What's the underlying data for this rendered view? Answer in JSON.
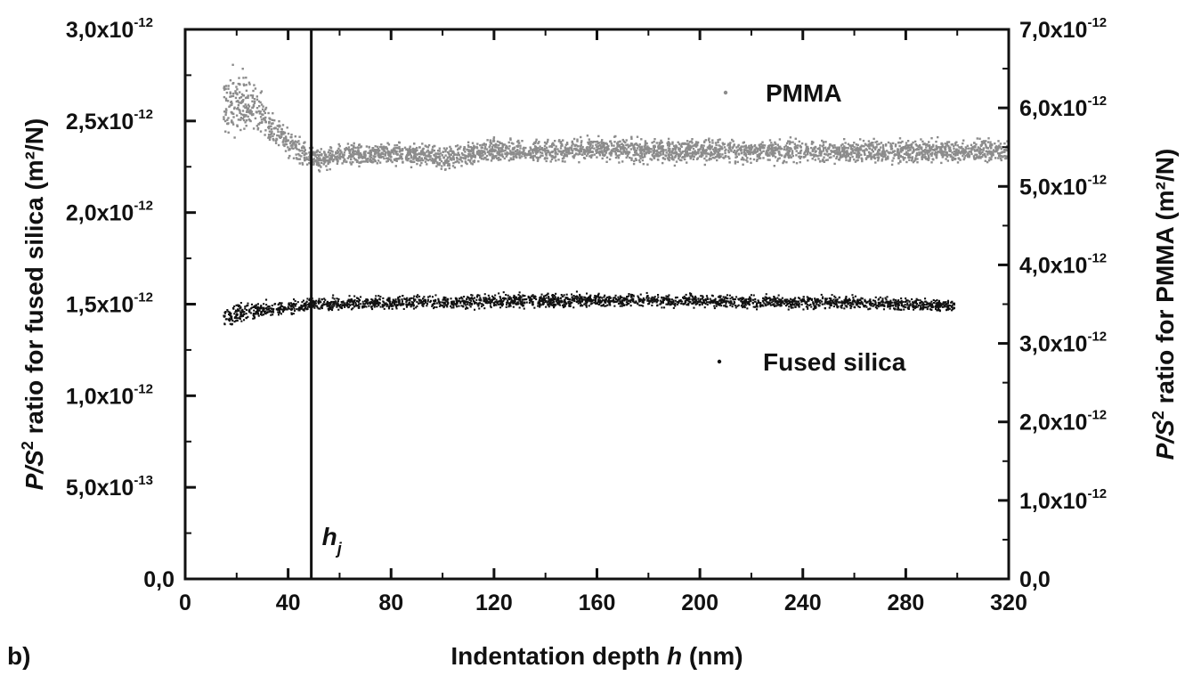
{
  "chart_data": {
    "type": "scatter",
    "panel_label": "b)",
    "xlabel": {
      "pre": "Indentation depth ",
      "var": "h",
      "post": " (nm)"
    },
    "ylabel_left": {
      "var": "P/S",
      "sup": "2",
      "post": " ratio for fused silica (m²/N)"
    },
    "ylabel_right": {
      "var": "P/S",
      "sup": "2",
      "post": " ratio for PMMA (m²/N)"
    },
    "xlim": [
      0,
      320
    ],
    "ylim_left": [
      0,
      3e-12
    ],
    "ylim_right": [
      0,
      7e-12
    ],
    "x_ticks": [
      "0",
      "40",
      "80",
      "120",
      "160",
      "200",
      "240",
      "280",
      "320"
    ],
    "y_left_ticks": [
      {
        "mant": "0,0",
        "exp": ""
      },
      {
        "mant": "5,0x10",
        "exp": "-13"
      },
      {
        "mant": "1,0x10",
        "exp": "-12"
      },
      {
        "mant": "1,5x10",
        "exp": "-12"
      },
      {
        "mant": "2,0x10",
        "exp": "-12"
      },
      {
        "mant": "2,5x10",
        "exp": "-12"
      },
      {
        "mant": "3,0x10",
        "exp": "-12"
      }
    ],
    "y_right_ticks": [
      {
        "mant": "0,0",
        "exp": ""
      },
      {
        "mant": "1,0x10",
        "exp": "-12"
      },
      {
        "mant": "2,0x10",
        "exp": "-12"
      },
      {
        "mant": "3,0x10",
        "exp": "-12"
      },
      {
        "mant": "4,0x10",
        "exp": "-12"
      },
      {
        "mant": "5,0x10",
        "exp": "-12"
      },
      {
        "mant": "6,0x10",
        "exp": "-12"
      },
      {
        "mant": "7,0x10",
        "exp": "-12"
      }
    ],
    "vline": {
      "x": 49,
      "label": "h",
      "sub": "j"
    },
    "series": [
      {
        "name": "PMMA",
        "axis": "right",
        "color": "#8c8c8c",
        "x": [
          15,
          20,
          25,
          30,
          35,
          40,
          45,
          50,
          55,
          60,
          70,
          80,
          90,
          100,
          110,
          120,
          140,
          160,
          180,
          200,
          220,
          240,
          260,
          280,
          300,
          320
        ],
        "y": [
          6e-12,
          6.1e-12,
          6.05e-12,
          5.85e-12,
          5.7e-12,
          5.55e-12,
          5.45e-12,
          5.35e-12,
          5.35e-12,
          5.4e-12,
          5.4e-12,
          5.42e-12,
          5.4e-12,
          5.35e-12,
          5.42e-12,
          5.45e-12,
          5.45e-12,
          5.48e-12,
          5.45e-12,
          5.45e-12,
          5.45e-12,
          5.45e-12,
          5.45e-12,
          5.45e-12,
          5.45e-12,
          5.45e-12
        ],
        "spread": [
          5.5e-13,
          5.5e-13,
          5e-13,
          4e-13,
          3e-13,
          2.5e-13,
          2.2e-13,
          2e-13,
          2e-13,
          2e-13,
          2e-13,
          2e-13,
          2e-13,
          2e-13,
          2e-13,
          2e-13,
          2e-13,
          2e-13,
          2e-13,
          2e-13,
          2e-13,
          2e-13,
          2e-13,
          2e-13,
          2e-13,
          2e-13
        ]
      },
      {
        "name": "Fused silica",
        "axis": "left",
        "color": "#111111",
        "x": [
          15,
          20,
          25,
          30,
          40,
          50,
          60,
          80,
          100,
          120,
          140,
          160,
          180,
          200,
          220,
          240,
          260,
          280,
          299
        ],
        "y": [
          1.43e-12,
          1.45e-12,
          1.46e-12,
          1.47e-12,
          1.48e-12,
          1.5e-12,
          1.5e-12,
          1.51e-12,
          1.51e-12,
          1.52e-12,
          1.52e-12,
          1.52e-12,
          1.52e-12,
          1.52e-12,
          1.51e-12,
          1.51e-12,
          1.51e-12,
          1.5e-12,
          1.49e-12
        ],
        "spread": [
          6e-14,
          8e-14,
          8e-14,
          6e-14,
          5e-14,
          5e-14,
          5e-14,
          5e-14,
          5e-14,
          5e-14,
          5e-14,
          5e-14,
          5e-14,
          5e-14,
          5e-14,
          5e-14,
          5e-14,
          5e-14,
          4e-14
        ]
      }
    ],
    "legend_placement": "inside, right"
  }
}
